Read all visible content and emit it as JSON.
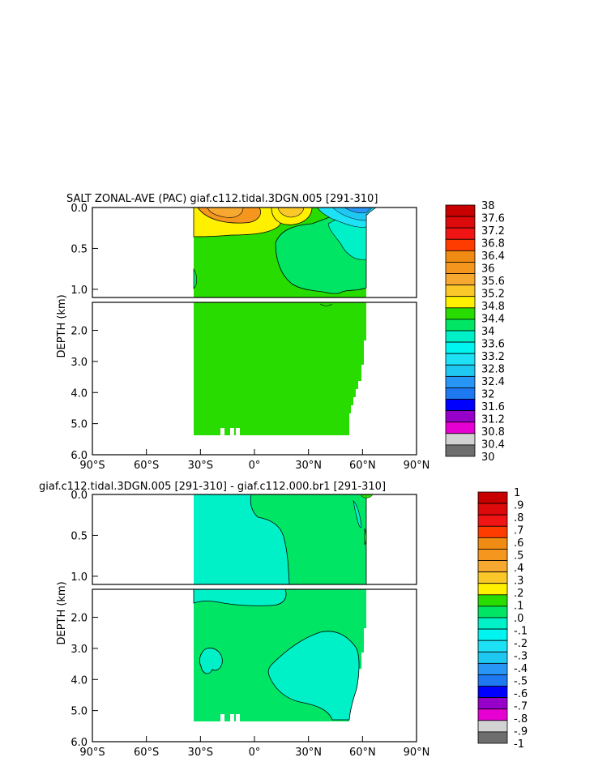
{
  "chart_data": [
    {
      "type": "heatmap",
      "title": "SALT ZONAL-AVE (PAC) giaf.c112.tidal.3DGN.005 [291-310]",
      "ylabel": "DEPTH (km)",
      "x_ticks": [
        "90°S",
        "60°S",
        "30°S",
        "0°",
        "30°N",
        "60°N",
        "90°N"
      ],
      "x_tick_values": [
        -90,
        -60,
        -30,
        0,
        30,
        60,
        90
      ],
      "upper_y_ticks": [
        "0.0",
        "0.5",
        "1.0"
      ],
      "upper_y_values": [
        0.0,
        0.5,
        1.0
      ],
      "lower_y_ticks": [
        "2.0",
        "3.0",
        "4.0",
        "5.0",
        "6.0"
      ],
      "lower_y_values": [
        2.0,
        3.0,
        4.0,
        5.0,
        6.0
      ],
      "xlim": [
        -90,
        90
      ],
      "ylim_upper": [
        0,
        1.1
      ],
      "ylim_lower": [
        1.1,
        6.0
      ],
      "data_extent": {
        "lat_min": -34,
        "lat_max": 62,
        "depth_max": 5.35
      },
      "colorbar": {
        "labels": [
          "38",
          "37.6",
          "37.2",
          "36.8",
          "36.4",
          "36",
          "35.6",
          "35.2",
          "34.8",
          "34.4",
          "34",
          "33.6",
          "33.2",
          "32.8",
          "32.4",
          "32",
          "31.6",
          "31.2",
          "30.8",
          "30.4",
          "30"
        ],
        "colors": [
          "#c80000",
          "#dc0a0a",
          "#f01414",
          "#ff3c00",
          "#f08c14",
          "#f5961e",
          "#f7a830",
          "#fac828",
          "#fff000",
          "#28dc00",
          "#00e664",
          "#00f0c8",
          "#00f5f0",
          "#1ee1f5",
          "#1ec8f0",
          "#2896f5",
          "#1e78f0",
          "#0000ff",
          "#9600c8",
          "#e600d2",
          "#d2d2d2",
          "#6e6e6e"
        ],
        "value_min": 30,
        "value_max": 38,
        "step": 0.4
      },
      "dominant_value": "34.4–34.8"
    },
    {
      "type": "heatmap",
      "title": "giaf.c112.tidal.3DGN.005 [291-310] - giaf.c112.000.br1 [291-310]",
      "ylabel": "DEPTH (km)",
      "x_ticks": [
        "90°S",
        "60°S",
        "30°S",
        "0°",
        "30°N",
        "60°N",
        "90°N"
      ],
      "x_tick_values": [
        -90,
        -60,
        -30,
        0,
        30,
        60,
        90
      ],
      "upper_y_ticks": [
        "0.0",
        "0.5",
        "1.0"
      ],
      "upper_y_values": [
        0.0,
        0.5,
        1.0
      ],
      "lower_y_ticks": [
        "2.0",
        "3.0",
        "4.0",
        "5.0",
        "6.0"
      ],
      "lower_y_values": [
        2.0,
        3.0,
        4.0,
        5.0,
        6.0
      ],
      "xlim": [
        -90,
        90
      ],
      "ylim_upper": [
        0,
        1.1
      ],
      "ylim_lower": [
        1.1,
        6.0
      ],
      "data_extent": {
        "lat_min": -34,
        "lat_max": 62,
        "depth_max": 5.35
      },
      "colorbar": {
        "labels": [
          "1",
          ".9",
          ".8",
          ".7",
          ".6",
          ".5",
          ".4",
          ".3",
          ".2",
          ".1",
          ".0",
          "-.1",
          "-.2",
          "-.3",
          "-.4",
          "-.5",
          "-.6",
          "-.7",
          "-.8",
          "-.9",
          "-1"
        ],
        "colors": [
          "#c80000",
          "#dc0a0a",
          "#f01414",
          "#ff3c00",
          "#f08c14",
          "#f5961e",
          "#f7a830",
          "#fac828",
          "#fff000",
          "#28dc00",
          "#00e664",
          "#00f0c8",
          "#00f5f0",
          "#1ee1f5",
          "#1ec8f0",
          "#2896f5",
          "#1e78f0",
          "#0000ff",
          "#9600c8",
          "#e600d2",
          "#d2d2d2",
          "#6e6e6e"
        ],
        "value_min": -1,
        "value_max": 1,
        "step": 0.1
      },
      "dominant_value": "0.0–0.1"
    }
  ]
}
